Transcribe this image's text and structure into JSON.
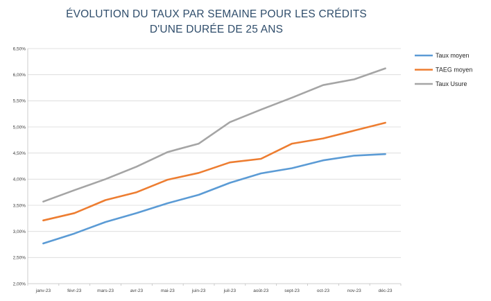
{
  "chart_data": {
    "type": "line",
    "title_line1": "ÉVOLUTION DU TAUX PAR SEMAINE POUR LES CRÉDITS",
    "title_line2": "D'UNE DURÉE DE 25 ANS",
    "xlabel": "",
    "ylabel": "",
    "categories": [
      "janv-23",
      "févr-23",
      "mars-23",
      "avr-23",
      "mai-23",
      "juin-23",
      "juil-23",
      "août-23",
      "sept-23",
      "oct-23",
      "nov-23",
      "déc-23"
    ],
    "yticks": [
      "2,00%",
      "2,50%",
      "3,00%",
      "3,50%",
      "4,00%",
      "4,50%",
      "5,00%",
      "5,50%",
      "6,00%",
      "6,50%"
    ],
    "ylim": [
      2.0,
      6.5
    ],
    "grid": true,
    "legend_position": "right",
    "series": [
      {
        "name": "Taux moyen",
        "color": "#5b9bd5",
        "values": [
          2.77,
          2.96,
          3.18,
          3.35,
          3.54,
          3.7,
          3.93,
          4.11,
          4.21,
          4.36,
          4.45,
          4.48
        ]
      },
      {
        "name": "TAEG moyen",
        "color": "#ed7d31",
        "values": [
          3.21,
          3.35,
          3.6,
          3.75,
          3.99,
          4.12,
          4.32,
          4.39,
          4.68,
          4.78,
          4.93,
          5.08
        ]
      },
      {
        "name": "Taux Usure",
        "color": "#a5a5a5",
        "values": [
          3.57,
          3.79,
          4.0,
          4.24,
          4.52,
          4.68,
          5.09,
          5.33,
          5.56,
          5.8,
          5.91,
          6.12
        ]
      }
    ]
  }
}
